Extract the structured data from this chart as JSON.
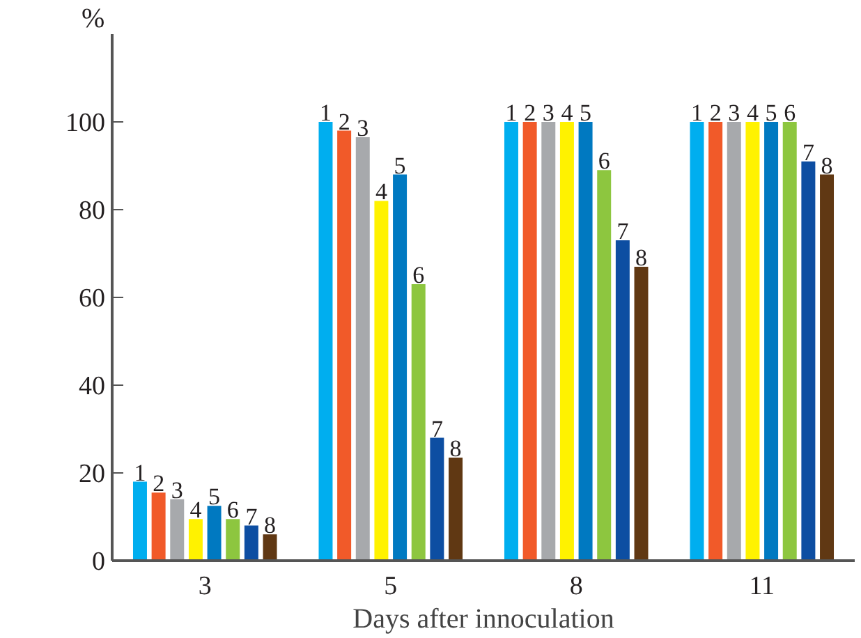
{
  "chart_data": {
    "type": "bar",
    "xlabel": "Days after innoculation",
    "ylabel": "%",
    "categories": [
      "3",
      "5",
      "8",
      "11"
    ],
    "series": [
      {
        "name": "1",
        "color": "#00aeef",
        "values": [
          18,
          100,
          100,
          100
        ]
      },
      {
        "name": "2",
        "color": "#f15a29",
        "values": [
          15.5,
          98,
          100,
          100
        ]
      },
      {
        "name": "3",
        "color": "#a7a9ac",
        "values": [
          14,
          96.5,
          100,
          100
        ]
      },
      {
        "name": "4",
        "color": "#fff200",
        "values": [
          9.5,
          82,
          100,
          100
        ]
      },
      {
        "name": "5",
        "color": "#0079c1",
        "values": [
          12.5,
          88,
          100,
          100
        ]
      },
      {
        "name": "6",
        "color": "#8dc63f",
        "values": [
          9.5,
          63,
          89,
          100
        ]
      },
      {
        "name": "7",
        "color": "#0d4ea2",
        "values": [
          8,
          28,
          73,
          91
        ]
      },
      {
        "name": "8",
        "color": "#603813",
        "values": [
          6,
          23.5,
          67,
          88
        ]
      }
    ],
    "ylim": [
      0,
      120
    ],
    "yticks": [
      0,
      20,
      40,
      60,
      80,
      100
    ],
    "grid": false
  }
}
